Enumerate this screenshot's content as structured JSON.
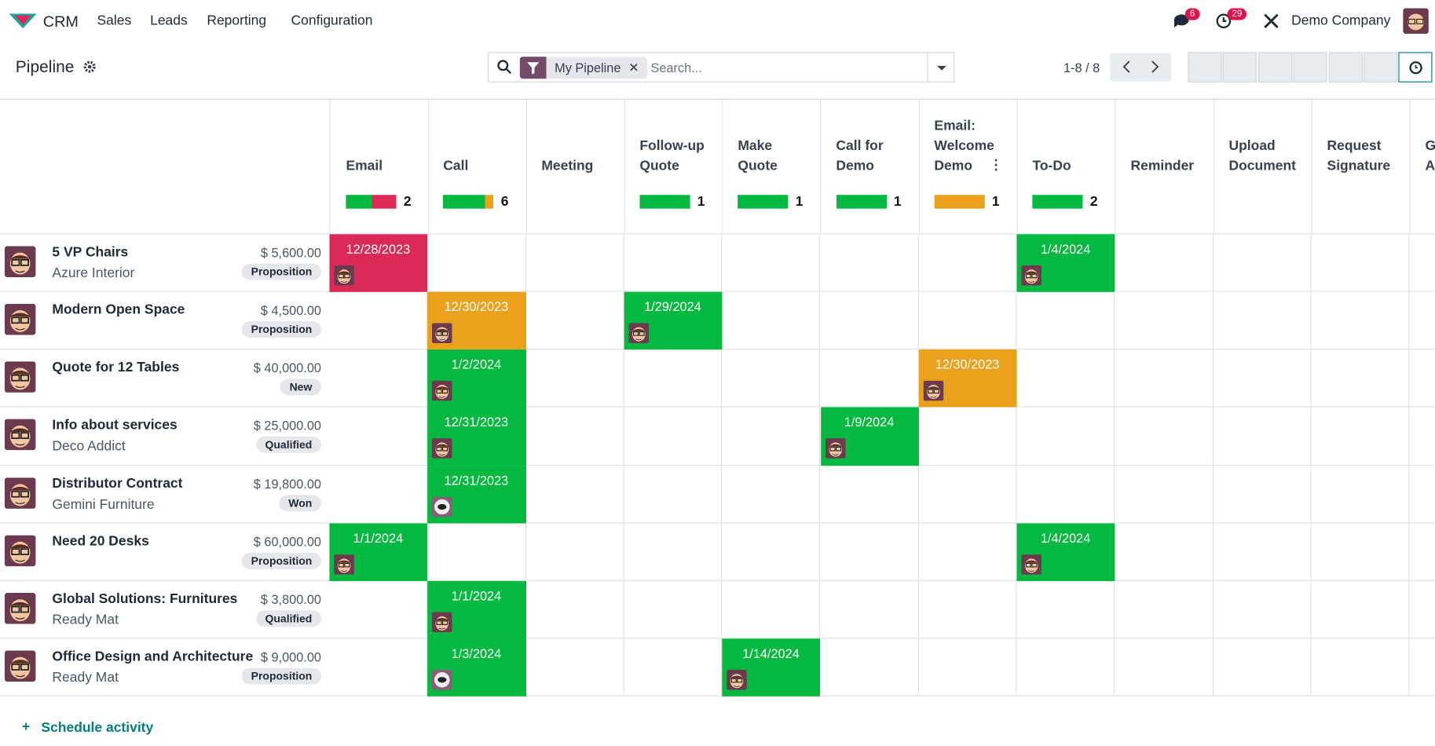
{
  "navbar": {
    "app": "CRM",
    "menu": [
      "Sales",
      "Leads",
      "Reporting",
      "Configuration"
    ],
    "messages_badge": "6",
    "activities_badge": "29",
    "company": "Demo Company"
  },
  "control_panel": {
    "title": "Pipeline",
    "facet": "My Pipeline",
    "search_placeholder": "Search...",
    "pager": "1-8 / 8"
  },
  "grid": {
    "columns": [
      {
        "name": "Email",
        "count": 2,
        "segments": [
          {
            "color": "#05b83f",
            "count": 1
          },
          {
            "color": "#dc2a58",
            "count": 1
          }
        ]
      },
      {
        "name": "Call",
        "count": 6,
        "segments": [
          {
            "color": "#05b83f",
            "count": 5
          },
          {
            "color": "#eba11b",
            "count": 1
          }
        ]
      },
      {
        "name": "Meeting"
      },
      {
        "name": "Follow-up Quote",
        "count": 1,
        "segments": [
          {
            "color": "#05b83f",
            "count": 1
          }
        ]
      },
      {
        "name": "Make Quote",
        "count": 1,
        "segments": [
          {
            "color": "#05b83f",
            "count": 1
          }
        ]
      },
      {
        "name": "Call for Demo",
        "count": 1,
        "segments": [
          {
            "color": "#05b83f",
            "count": 1
          }
        ]
      },
      {
        "name": "Email: Welcome Demo",
        "count": 1,
        "segments": [
          {
            "color": "#eba11b",
            "count": 1
          }
        ]
      },
      {
        "name": "To-Do",
        "count": 2,
        "segments": [
          {
            "color": "#05b83f",
            "count": 2
          }
        ]
      },
      {
        "name": "Reminder"
      },
      {
        "name": "Upload Document"
      },
      {
        "name": "Request Signature"
      },
      {
        "name": "Get Approval"
      }
    ],
    "rows": [
      {
        "name": "5 VP Chairs",
        "amount": "$ 5,600.00",
        "customer": "Azure Interior",
        "stage": "Proposition",
        "cells": [
          {
            "date": "12/28/2023",
            "color": "#dc2a58"
          },
          null,
          null,
          null,
          null,
          null,
          null,
          {
            "date": "1/4/2024",
            "color": "#05b83f"
          },
          null,
          null,
          null,
          null
        ]
      },
      {
        "name": "Modern Open Space",
        "amount": "$ 4,500.00",
        "stage": "Proposition",
        "cells": [
          null,
          {
            "date": "12/30/2023",
            "color": "#eba11b"
          },
          null,
          {
            "date": "1/29/2024",
            "color": "#05b83f"
          },
          null,
          null,
          null,
          null,
          null,
          null,
          null,
          null
        ]
      },
      {
        "name": "Quote for 12 Tables",
        "amount": "$ 40,000.00",
        "stage": "New",
        "cells": [
          null,
          {
            "date": "1/2/2024",
            "color": "#05b83f"
          },
          null,
          null,
          null,
          null,
          {
            "date": "12/30/2023",
            "color": "#eba11b"
          },
          null,
          null,
          null,
          null,
          null
        ]
      },
      {
        "name": "Info about services",
        "amount": "$ 25,000.00",
        "customer": "Deco Addict",
        "stage": "Qualified",
        "cells": [
          null,
          {
            "date": "12/31/2023",
            "color": "#05b83f"
          },
          null,
          null,
          null,
          {
            "date": "1/9/2024",
            "color": "#05b83f"
          },
          null,
          null,
          null,
          null,
          null,
          null
        ]
      },
      {
        "name": "Distributor Contract",
        "amount": "$ 19,800.00",
        "customer": "Gemini Furniture",
        "stage": "Won",
        "cells": [
          null,
          {
            "date": "12/31/2023",
            "color": "#05b83f",
            "bot": true
          },
          null,
          null,
          null,
          null,
          null,
          null,
          null,
          null,
          null,
          null
        ]
      },
      {
        "name": "Need 20 Desks",
        "amount": "$ 60,000.00",
        "stage": "Proposition",
        "cells": [
          {
            "date": "1/1/2024",
            "color": "#05b83f"
          },
          null,
          null,
          null,
          null,
          null,
          null,
          {
            "date": "1/4/2024",
            "color": "#05b83f"
          },
          null,
          null,
          null,
          null
        ]
      },
      {
        "name": "Global Solutions: Furnitures",
        "amount": "$ 3,800.00",
        "customer": "Ready Mat",
        "stage": "Qualified",
        "cells": [
          null,
          {
            "date": "1/1/2024",
            "color": "#05b83f"
          },
          null,
          null,
          null,
          null,
          null,
          null,
          null,
          null,
          null,
          null
        ]
      },
      {
        "name": "Office Design and Architecture",
        "amount": "$ 9,000.00",
        "customer": "Ready Mat",
        "stage": "Proposition",
        "cells": [
          null,
          {
            "date": "1/3/2024",
            "color": "#05b83f",
            "bot": true
          },
          null,
          null,
          {
            "date": "1/14/2024",
            "color": "#05b83f"
          },
          null,
          null,
          null,
          null,
          null,
          null,
          null
        ]
      }
    ]
  },
  "footer": {
    "link": "Schedule activity"
  }
}
